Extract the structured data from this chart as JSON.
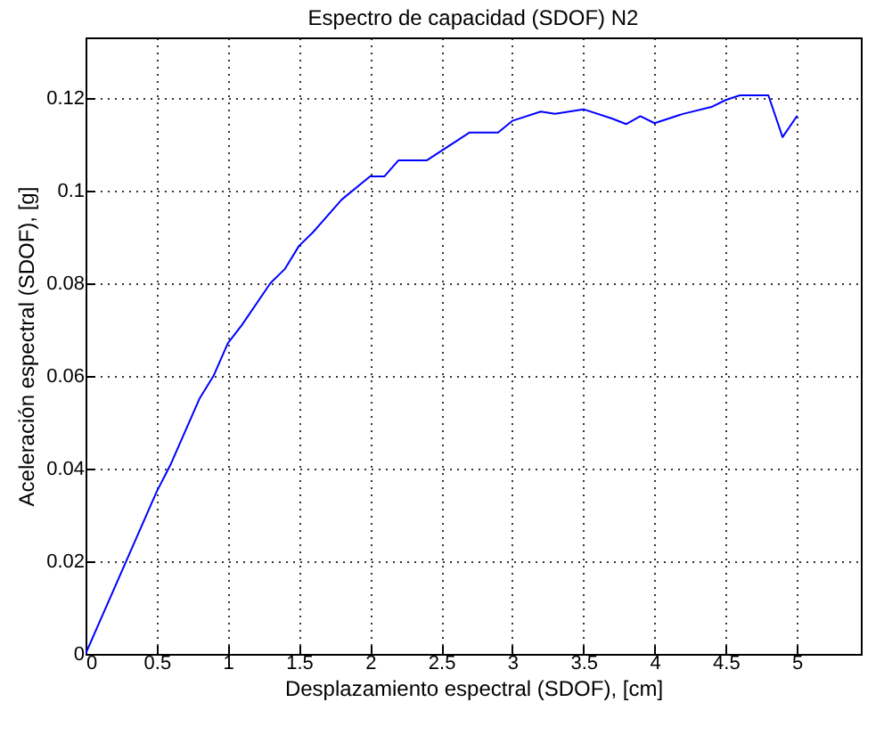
{
  "chart_data": {
    "type": "line",
    "title": "Espectro de capacidad (SDOF) N2",
    "xlabel": "Desplazamiento espectral (SDOF), [cm]",
    "ylabel": "Aceleración espectral (SDOF), [g]",
    "x": [
      0,
      0.5,
      0.6,
      0.8,
      0.9,
      1.0,
      1.1,
      1.3,
      1.4,
      1.5,
      1.6,
      1.8,
      2.0,
      2.1,
      2.2,
      2.4,
      2.6,
      2.7,
      2.9,
      3.0,
      3.2,
      3.3,
      3.5,
      3.7,
      3.8,
      3.9,
      4.0,
      4.2,
      4.4,
      4.5,
      4.6,
      4.8,
      4.9,
      5.0
    ],
    "series": [
      {
        "color": "#0000ff",
        "values": [
          0,
          0.035,
          0.041,
          0.055,
          0.06,
          0.067,
          0.071,
          0.08,
          0.083,
          0.088,
          0.091,
          0.098,
          0.103,
          0.103,
          0.1065,
          0.1065,
          0.1105,
          0.1125,
          0.1125,
          0.115,
          0.117,
          0.1165,
          0.1175,
          0.1155,
          0.1143,
          0.116,
          0.1145,
          0.1165,
          0.118,
          0.1195,
          0.1205,
          0.1205,
          0.1115,
          0.116
        ]
      }
    ],
    "xlim": [
      0,
      5.45
    ],
    "xticks": [
      0,
      0.5,
      1,
      1.5,
      2,
      2.5,
      3,
      3.5,
      4,
      4.5,
      5
    ],
    "ylim": [
      0,
      0.133
    ],
    "yticks": [
      0,
      0.02,
      0.04,
      0.06,
      0.08,
      0.1,
      0.12
    ],
    "grid": true,
    "line_style": "solid",
    "legend": false
  }
}
